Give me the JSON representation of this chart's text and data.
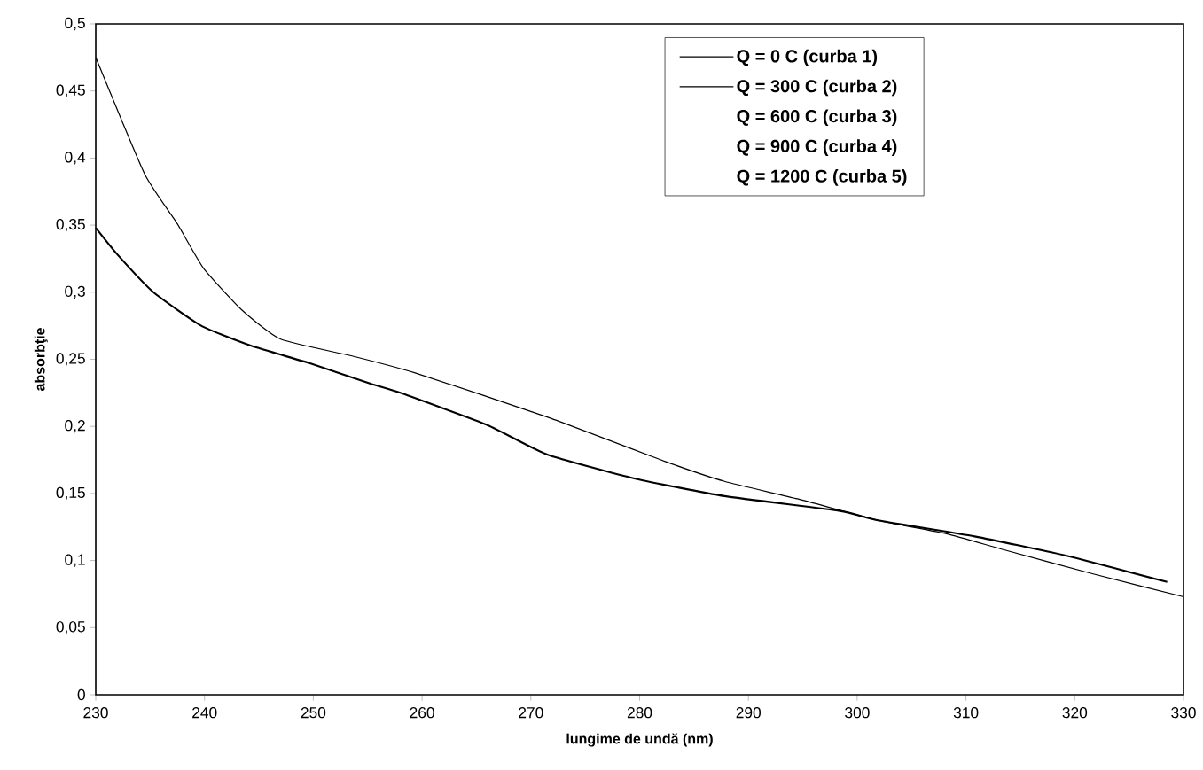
{
  "chart_data": {
    "type": "line",
    "xlabel": "lungime de undă (nm)",
    "ylabel": "absorbţie",
    "xlim": [
      230,
      330
    ],
    "xticks": [
      230,
      240,
      250,
      260,
      270,
      280,
      290,
      300,
      310,
      320,
      330
    ],
    "ylim": [
      0,
      0.5
    ],
    "yticks": [
      0,
      {
        "value": 0.05,
        "label": "0,05"
      },
      {
        "value": 0.1,
        "label": "0,1"
      },
      {
        "value": 0.15,
        "label": "0,15"
      },
      {
        "value": 0.2,
        "label": "0,2"
      },
      {
        "value": 0.25,
        "label": "0,25"
      },
      {
        "value": 0.3,
        "label": "0,3"
      },
      {
        "value": 0.35,
        "label": "0,35"
      },
      {
        "value": 0.4,
        "label": "0,4"
      },
      {
        "value": 0.45,
        "label": "0,45"
      },
      {
        "value": 0.5,
        "label": "0,5"
      }
    ],
    "grid": false,
    "legend": "top right",
    "marker": "none",
    "line_style": "solid",
    "series": [
      {
        "name": "Q = 0 C     (curba 1)",
        "color": "#000000",
        "x": [
          230,
          232,
          235.3,
          239.7,
          244.3,
          249.7,
          255.2,
          258,
          266,
          271.5,
          279.6,
          287.8,
          298.4,
          301.9,
          310.8,
          319,
          328.5
        ],
        "values": [
          0.348,
          0.328,
          0.3,
          0.275,
          0.26,
          0.247,
          0.232,
          0.225,
          0.201,
          0.179,
          0.161,
          0.148,
          0.137,
          0.13,
          0.118,
          0.104,
          0.084
        ]
      },
      {
        "name": "Q = 300 C  (curba 2)",
        "color": "#000000",
        "x": [
          230,
          234.5,
          237.5,
          239.9,
          243.4,
          247,
          253.8,
          259.3,
          271.5,
          282.3,
          287.8,
          294.5,
          301.9,
          308.2,
          313.5,
          321.7,
          330
        ],
        "values": [
          0.475,
          0.388,
          0.351,
          0.318,
          0.287,
          0.265,
          0.252,
          0.24,
          0.207,
          0.174,
          0.159,
          0.146,
          0.13,
          0.12,
          0.108,
          0.09,
          0.073
        ]
      },
      {
        "name": "Q = 600 C  (curba 3)"
      },
      {
        "name": "Q = 900 C  (curba 4)"
      },
      {
        "name": "Q = 1200 C (curba 5)"
      }
    ]
  }
}
